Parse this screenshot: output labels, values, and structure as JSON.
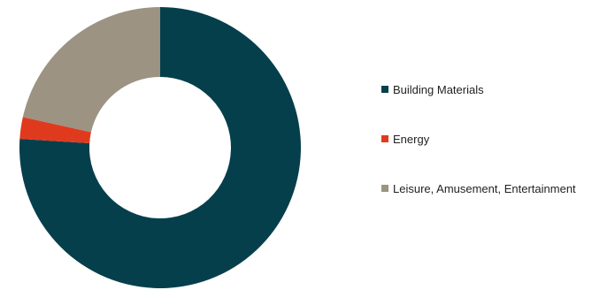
{
  "chart_data": {
    "type": "pie",
    "variant": "donut",
    "title": "",
    "categories": [
      "Building Materials",
      "Energy",
      "Leisure, Amusement, Entertainment"
    ],
    "values": [
      76,
      2.5,
      21.5
    ],
    "unit": "%",
    "colors": [
      "#063f4c",
      "#e03a1e",
      "#9c9382"
    ],
    "legend": {
      "position": "right",
      "entries": [
        "Building Materials",
        "Energy",
        "Leisure, Amusement, Entertainment"
      ]
    },
    "start_angle": "12 o'clock",
    "direction": "clockwise",
    "data_labels": false
  }
}
